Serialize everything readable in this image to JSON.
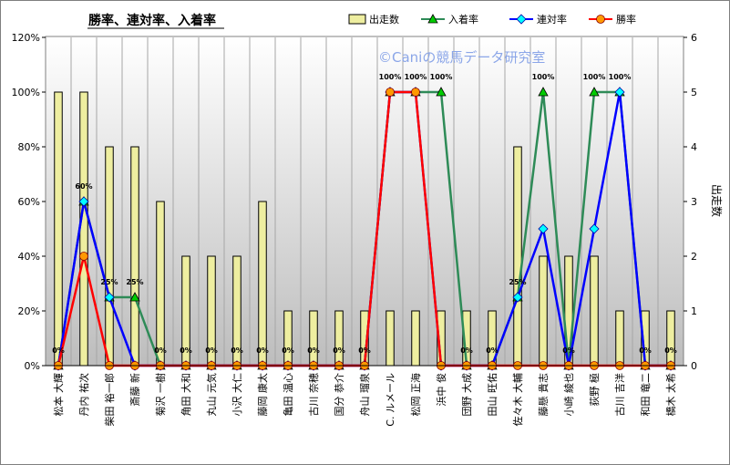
{
  "chart_data": {
    "type": "bar",
    "title": "勝率、連対率、入着率",
    "watermark": "©Caniの競馬データ研究室",
    "y_left_ticks": [
      "0%",
      "20%",
      "40%",
      "60%",
      "80%",
      "100%",
      "120%"
    ],
    "y_right_ticks": [
      "0",
      "1",
      "2",
      "3",
      "4",
      "5",
      "6"
    ],
    "y_right_label": "出走数",
    "y_left_range": [
      0,
      1.2
    ],
    "y_right_range": [
      0,
      6
    ],
    "legend_position": "top",
    "categories": [
      "松本 大輝",
      "丹内 祐次",
      "柴田 裕一郎",
      "斎藤 新",
      "菊沢 一樹",
      "角田 大和",
      "丸山 元気",
      "小沢 大仁",
      "藤岡 康太",
      "亀田 温心",
      "古川 奈穂",
      "国分 恭介",
      "舟山 瑠泉",
      "C. ルメール",
      "松岡 正海",
      "浜中 俊",
      "団野 大成",
      "田山 旺佑",
      "佐々木 大輔",
      "藤懸 貴志",
      "小崎 綾也",
      "荻野 極",
      "古川 吉洋",
      "和田 竜二",
      "橋木 太希"
    ],
    "series": [
      {
        "name": "出走数",
        "kind": "bar",
        "axis": "right",
        "values": [
          5,
          5,
          4,
          4,
          3,
          2,
          2,
          2,
          3,
          1,
          1,
          1,
          1,
          1,
          1,
          1,
          1,
          1,
          4,
          2,
          2,
          2,
          1,
          1,
          1
        ]
      },
      {
        "name": "入着率",
        "kind": "line",
        "axis": "left",
        "values": [
          0,
          0.6,
          0.25,
          0.25,
          0,
          0,
          0,
          0,
          0,
          0,
          0,
          0,
          0,
          1,
          1,
          1,
          0,
          0,
          0.25,
          1,
          0,
          1,
          1,
          0,
          0
        ]
      },
      {
        "name": "連対率",
        "kind": "line",
        "axis": "left",
        "values": [
          0,
          0.6,
          0.25,
          0,
          0,
          0,
          0,
          0,
          0,
          0,
          0,
          0,
          0,
          1,
          1,
          0,
          0,
          0,
          0.25,
          0.5,
          0,
          0.5,
          1,
          0,
          0
        ]
      },
      {
        "name": "勝率",
        "kind": "line",
        "axis": "left",
        "values": [
          0,
          0.4,
          0,
          0,
          0,
          0,
          0,
          0,
          0,
          0,
          0,
          0,
          0,
          1,
          1,
          0,
          0,
          0,
          0,
          0,
          0,
          0,
          0,
          0,
          0
        ]
      }
    ],
    "data_labels": [
      {
        "index": 0,
        "text": "0%"
      },
      {
        "index": 1,
        "text": "60%"
      },
      {
        "index": 2,
        "text": "25%"
      },
      {
        "index": 3,
        "text": "25%"
      },
      {
        "index": 4,
        "text": "0%"
      },
      {
        "index": 5,
        "text": "0%"
      },
      {
        "index": 6,
        "text": "0%"
      },
      {
        "index": 7,
        "text": "0%"
      },
      {
        "index": 8,
        "text": "0%"
      },
      {
        "index": 9,
        "text": "0%"
      },
      {
        "index": 10,
        "text": "0%"
      },
      {
        "index": 11,
        "text": "0%"
      },
      {
        "index": 12,
        "text": "0%"
      },
      {
        "index": 13,
        "text": "100%"
      },
      {
        "index": 14,
        "text": "100%"
      },
      {
        "index": 15,
        "text": "100%"
      },
      {
        "index": 16,
        "text": "0%"
      },
      {
        "index": 17,
        "text": "0%"
      },
      {
        "index": 18,
        "text": "25%"
      },
      {
        "index": 19,
        "text": "100%"
      },
      {
        "index": 20,
        "text": "0%"
      },
      {
        "index": 21,
        "text": "100%"
      },
      {
        "index": 22,
        "text": "100%"
      },
      {
        "index": 23,
        "text": "0%"
      },
      {
        "index": 24,
        "text": "0%"
      }
    ],
    "colors": {
      "bar_fill": "#eeeea0",
      "bar_stroke": "#000000",
      "入着率": "#2e8b57",
      "連対率": "#0000ff",
      "勝率": "#ff0000",
      "marker_連対率": "#00ffff",
      "marker_勝率": "#ff9900",
      "marker_入着率": "#00cc00",
      "plot_bg_top": "#ffffff",
      "plot_bg_bottom": "#bdbdbd"
    }
  }
}
